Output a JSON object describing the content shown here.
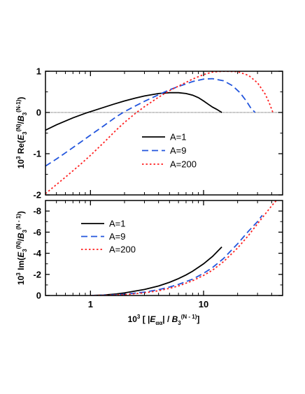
{
  "chart_data": [
    {
      "type": "line",
      "panel": "top",
      "ylabel_parts": [
        "10",
        "3",
        " Re(",
        "E",
        "3",
        "(N)",
        "/",
        "B",
        "3",
        "(N-1)",
        ")"
      ],
      "xscale": "log",
      "xlim": [
        0.4,
        50
      ],
      "ylim": [
        -2,
        1
      ],
      "yticks": [
        -2,
        -1,
        0,
        1
      ],
      "ytick_labels": [
        "-2",
        "-1",
        "0",
        "1"
      ],
      "zero_line": true,
      "legend_position": "center-right",
      "series": [
        {
          "name": "A=1",
          "color": "#000000",
          "dash": "solid",
          "x": [
            0.4,
            0.5,
            0.7,
            0.9,
            1.2,
            1.6,
            2,
            2.5,
            3,
            4,
            5,
            6,
            7,
            8,
            9,
            10,
            11,
            12,
            13,
            14.5
          ],
          "y": [
            -0.43,
            -0.3,
            -0.13,
            -0.02,
            0.09,
            0.2,
            0.28,
            0.35,
            0.4,
            0.46,
            0.48,
            0.48,
            0.46,
            0.42,
            0.36,
            0.28,
            0.2,
            0.13,
            0.08,
            0.0
          ]
        },
        {
          "name": "A=9",
          "color": "#2255dd",
          "dash": "9,5",
          "x": [
            0.4,
            0.5,
            0.6,
            0.8,
            1,
            1.3,
            1.7,
            2,
            2.5,
            3,
            4,
            5,
            6,
            8,
            10,
            12,
            15,
            18,
            21,
            24,
            26,
            28.5
          ],
          "y": [
            -1.3,
            -1.13,
            -0.98,
            -0.74,
            -0.55,
            -0.33,
            -0.1,
            0.02,
            0.16,
            0.27,
            0.43,
            0.55,
            0.63,
            0.75,
            0.81,
            0.82,
            0.77,
            0.65,
            0.48,
            0.27,
            0.12,
            0.0
          ]
        },
        {
          "name": "A=200",
          "color": "#ff2020",
          "dash": "2.5,3",
          "x": [
            0.4,
            0.5,
            0.6,
            0.8,
            1,
            1.3,
            1.7,
            2,
            2.5,
            3,
            4,
            5,
            6,
            8,
            10,
            12,
            15,
            20,
            25,
            30,
            35,
            38,
            41
          ],
          "y": [
            -1.97,
            -1.75,
            -1.57,
            -1.28,
            -1.04,
            -0.74,
            -0.42,
            -0.24,
            -0.02,
            0.14,
            0.37,
            0.53,
            0.64,
            0.81,
            0.92,
            0.98,
            1.0,
            0.99,
            0.9,
            0.72,
            0.45,
            0.24,
            0.0
          ]
        }
      ]
    },
    {
      "type": "line",
      "panel": "bottom",
      "ylabel_parts": [
        "10",
        "3",
        " Im(",
        "E",
        "3",
        "(N)",
        "/",
        "B",
        "3",
        "(N - 1)",
        ")"
      ],
      "xlabel_parts": [
        "10",
        "3",
        " [ |",
        "E",
        "αα",
        "| / ",
        "B",
        "3",
        "(N - 1)",
        "]"
      ],
      "xscale": "log",
      "xlim": [
        0.4,
        50
      ],
      "ylim": [
        0,
        -9
      ],
      "yticks": [
        0,
        -2,
        -4,
        -6,
        -8
      ],
      "ytick_labels": [
        "0",
        "-2",
        "-4",
        "-6",
        "-8"
      ],
      "xticks": [
        1,
        10
      ],
      "xtick_labels": [
        "1",
        "10"
      ],
      "legend_position": "upper-left",
      "series": [
        {
          "name": "A=1",
          "color": "#000000",
          "dash": "solid",
          "x": [
            1,
            1.3,
            1.7,
            2,
            3,
            4,
            5,
            6,
            7,
            8,
            10,
            12,
            14.5
          ],
          "y": [
            0,
            -0.04,
            -0.15,
            -0.25,
            -0.57,
            -0.9,
            -1.25,
            -1.6,
            -1.95,
            -2.3,
            -3.0,
            -3.7,
            -4.6
          ]
        },
        {
          "name": "A=9",
          "color": "#2255dd",
          "dash": "9,5",
          "x": [
            1,
            1.5,
            2,
            3,
            4,
            5,
            6,
            8,
            10,
            12,
            15,
            20,
            25,
            30,
            33
          ],
          "y": [
            0,
            -0.04,
            -0.12,
            -0.32,
            -0.55,
            -0.8,
            -1.05,
            -1.55,
            -2.1,
            -2.65,
            -3.5,
            -4.9,
            -6.1,
            -7.0,
            -7.6
          ]
        },
        {
          "name": "A=200",
          "color": "#ff2020",
          "dash": "2.5,3",
          "x": [
            1,
            1.5,
            2,
            3,
            4,
            5,
            6,
            8,
            10,
            12,
            15,
            20,
            25,
            30,
            35,
            40,
            44
          ],
          "y": [
            0,
            -0.03,
            -0.08,
            -0.25,
            -0.45,
            -0.68,
            -0.9,
            -1.4,
            -1.9,
            -2.4,
            -3.2,
            -4.5,
            -5.7,
            -6.8,
            -7.7,
            -8.5,
            -9.0
          ]
        }
      ]
    }
  ]
}
